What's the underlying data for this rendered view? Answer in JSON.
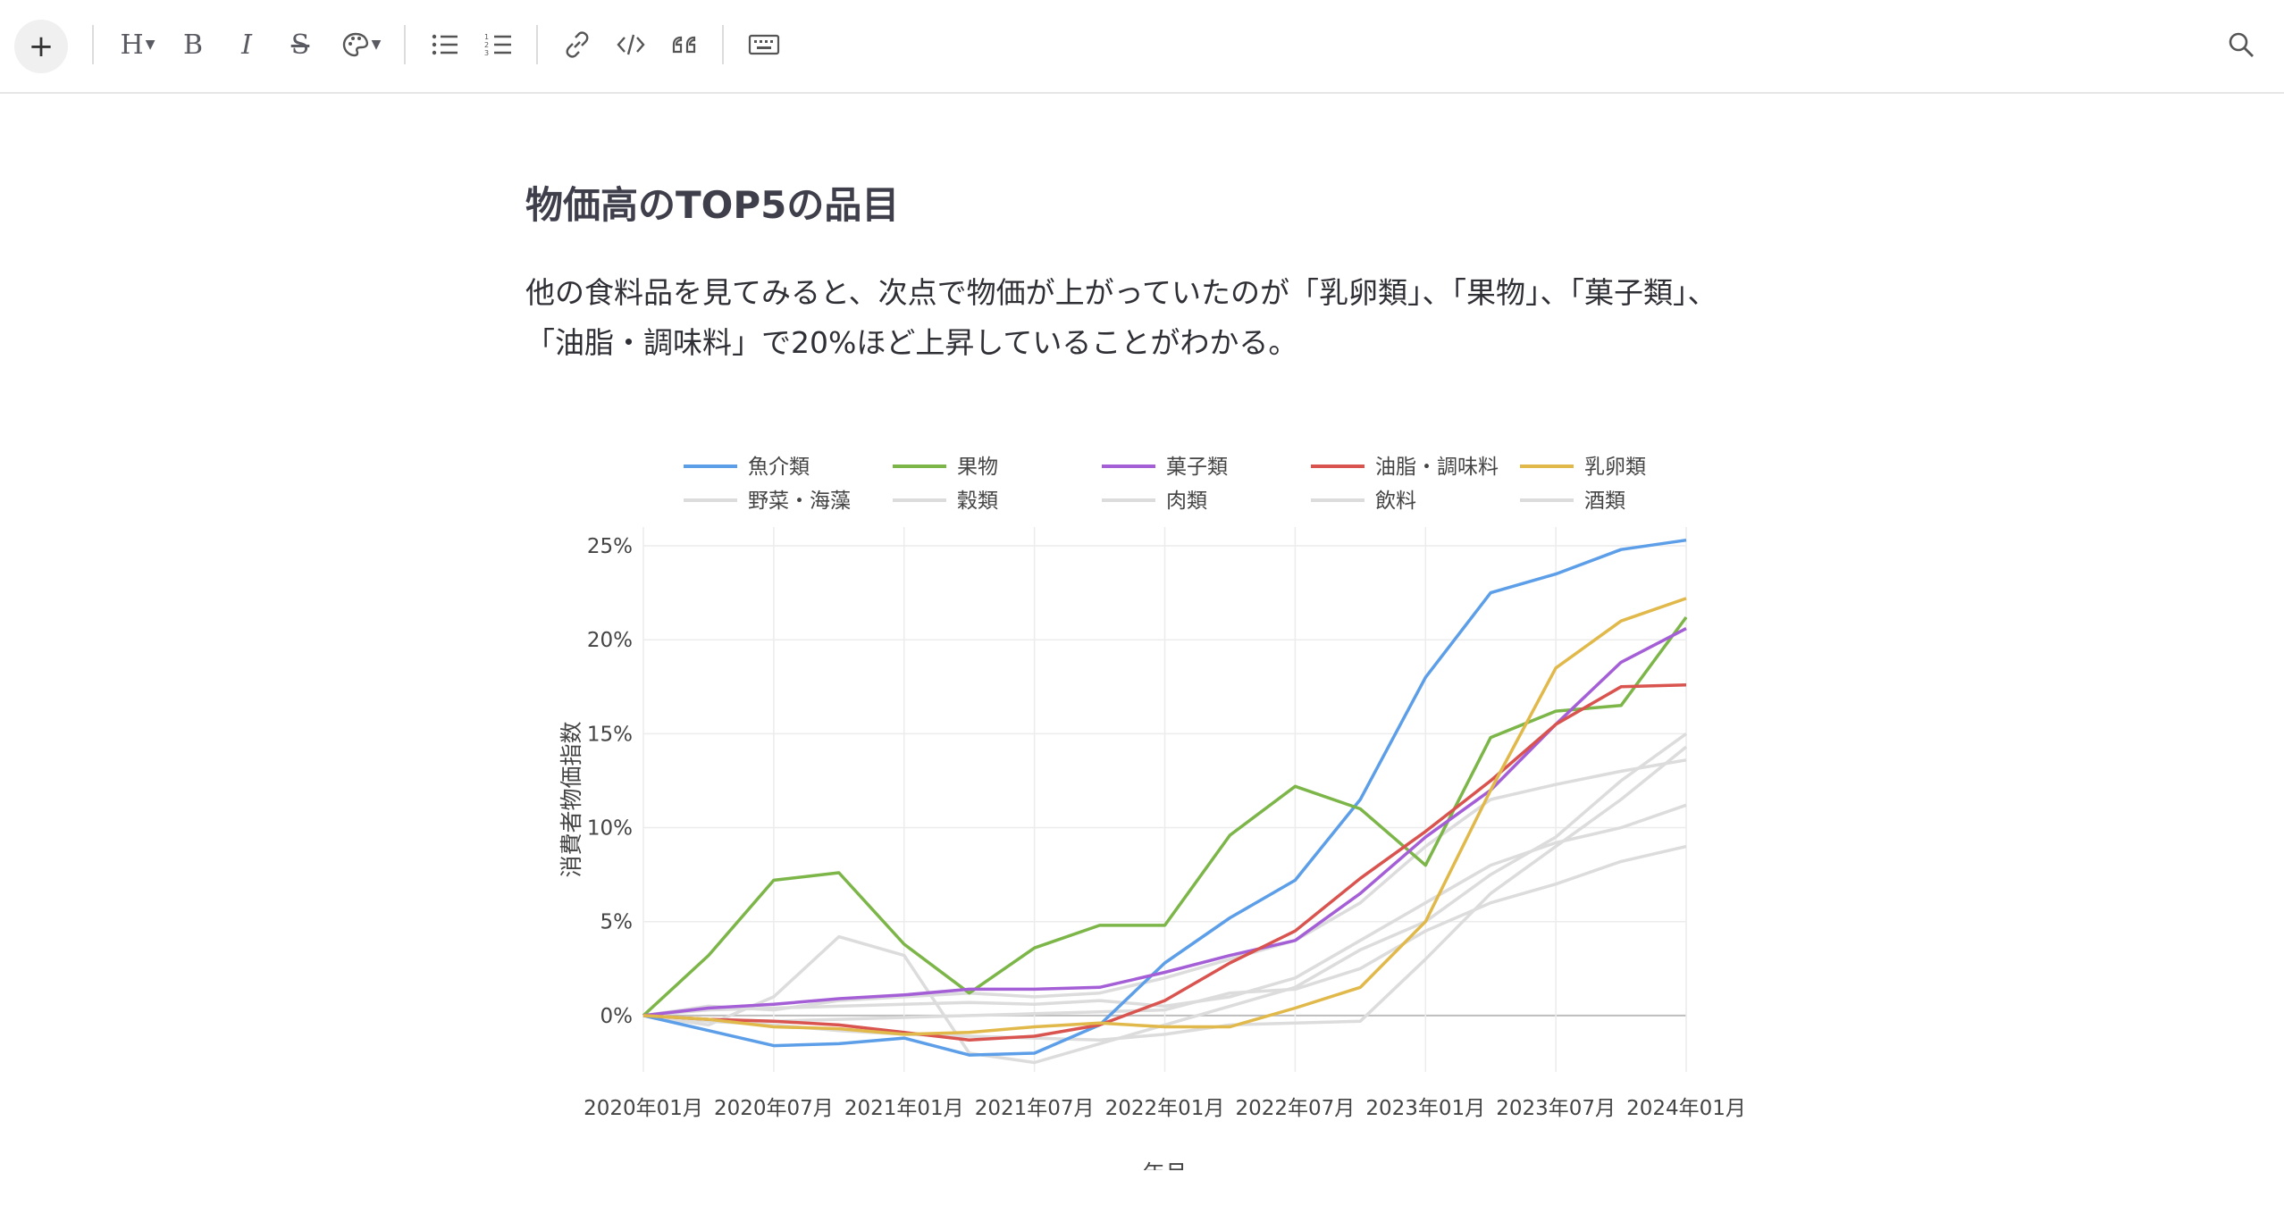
{
  "toolbar": {
    "plus_label": "+",
    "heading_label": "H",
    "bold_label": "B",
    "italic_label": "I",
    "strike_label": "S"
  },
  "article": {
    "heading": "物価高のTOP5の品目",
    "paragraph": "他の食料品を見てみると、次点で物価が上がっていたのが「乳卵類」、「果物」、「菓子類」、「油脂・調味料」で20%ほど上昇していることがわかる。"
  },
  "chart_data": {
    "type": "line",
    "x": [
      "2020-01",
      "2020-04",
      "2020-07",
      "2020-10",
      "2021-01",
      "2021-04",
      "2021-07",
      "2021-10",
      "2022-01",
      "2022-04",
      "2022-07",
      "2022-10",
      "2023-01",
      "2023-04",
      "2023-07",
      "2023-10",
      "2024-01"
    ],
    "xticks": [
      "2020年01月",
      "2020年07月",
      "2021年01月",
      "2021年07月",
      "2022年01月",
      "2022年07月",
      "2023年01月",
      "2023年07月",
      "2024年01月"
    ],
    "yticks": [
      "25%",
      "20%",
      "15%",
      "10%",
      "5%",
      "0%"
    ],
    "ylim": [
      -3,
      26
    ],
    "xlabel": "年月",
    "ylabel": "消費者物価指数",
    "legend_position": "top",
    "grid": true,
    "series": [
      {
        "name": "魚介類",
        "color": "#5c9ee8",
        "values": [
          0,
          -0.8,
          -1.6,
          -1.5,
          -1.2,
          -2.1,
          -2.0,
          -0.5,
          2.8,
          5.2,
          7.2,
          11.5,
          18.0,
          22.5,
          23.5,
          24.8,
          25.3
        ]
      },
      {
        "name": "果物",
        "color": "#7cb548",
        "values": [
          0,
          3.2,
          7.2,
          7.6,
          3.8,
          1.2,
          3.6,
          4.8,
          4.8,
          9.6,
          12.2,
          11.0,
          8.0,
          14.8,
          16.2,
          16.5,
          21.2
        ]
      },
      {
        "name": "菓子類",
        "color": "#a45fd6",
        "values": [
          0,
          0.4,
          0.6,
          0.9,
          1.1,
          1.4,
          1.4,
          1.5,
          2.3,
          3.2,
          4.0,
          6.5,
          9.5,
          12.0,
          15.5,
          18.8,
          20.6
        ]
      },
      {
        "name": "油脂・調味料",
        "color": "#d9534f",
        "values": [
          0,
          -0.2,
          -0.3,
          -0.5,
          -0.9,
          -1.3,
          -1.1,
          -0.5,
          0.8,
          2.8,
          4.5,
          7.3,
          9.8,
          12.5,
          15.5,
          17.5,
          17.6
        ]
      },
      {
        "name": "乳卵類",
        "color": "#e1b84a",
        "values": [
          0,
          -0.2,
          -0.6,
          -0.7,
          -1.0,
          -0.9,
          -0.6,
          -0.4,
          -0.6,
          -0.6,
          0.4,
          1.5,
          5.0,
          12.0,
          18.5,
          21.0,
          22.2
        ]
      },
      {
        "name": "野菜・海藻",
        "color": "#dcdcdc",
        "values": [
          0,
          -0.5,
          1.0,
          4.2,
          3.2,
          -2.0,
          -2.5,
          -1.5,
          -0.5,
          0.5,
          1.5,
          3.5,
          5.0,
          7.5,
          9.5,
          12.5,
          15.0
        ]
      },
      {
        "name": "穀類",
        "color": "#dcdcdc",
        "values": [
          0,
          -0.3,
          -0.5,
          -0.8,
          -1.0,
          -1.1,
          -1.2,
          -1.3,
          -1.0,
          -0.5,
          -0.4,
          -0.3,
          3.0,
          6.5,
          9.0,
          11.5,
          14.3
        ]
      },
      {
        "name": "肉類",
        "color": "#dcdcdc",
        "values": [
          0,
          0.5,
          0.3,
          0.8,
          1.0,
          1.2,
          1.0,
          1.2,
          2.0,
          3.0,
          4.0,
          6.0,
          9.0,
          11.5,
          12.3,
          13.0,
          13.6
        ]
      },
      {
        "name": "飲料",
        "color": "#dcdcdc",
        "values": [
          0,
          0.3,
          0.4,
          0.5,
          0.6,
          0.7,
          0.6,
          0.8,
          0.5,
          1.0,
          2.0,
          4.0,
          6.0,
          8.0,
          9.2,
          10.0,
          11.2
        ]
      },
      {
        "name": "酒類",
        "color": "#dcdcdc",
        "values": [
          0,
          -0.2,
          -0.3,
          -0.2,
          -0.1,
          0,
          0.1,
          0.2,
          0.3,
          1.2,
          1.4,
          2.5,
          4.5,
          6.0,
          7.0,
          8.2,
          9.0
        ]
      }
    ]
  }
}
